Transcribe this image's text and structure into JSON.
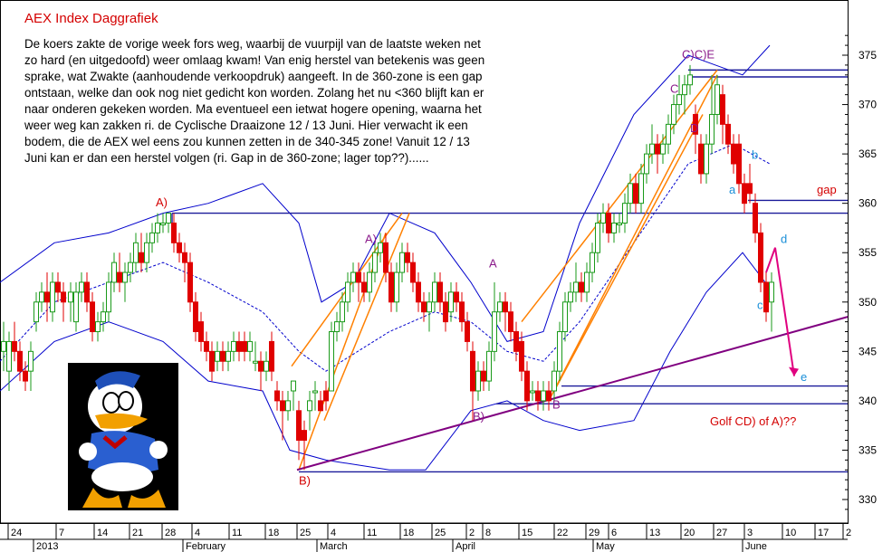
{
  "chart_data": {
    "type": "candlestick",
    "title": "AEX Index Daggrafiek",
    "commentary": [
      "De koers zakte de vorige week fors weg, waarbij de vuurpijl van de laatste weken net",
      "zo hard (en uitgedoofd) weer omlaag kwam! Van enig herstel van betekenis was geen",
      "sprake, wat Zwakte (aanhoudende verkoopdruk) aangeeft. In de 360-zone is een gap",
      "ontstaan, welke dan ook nog niet gedicht kon worden. Zolang het nu <360 blijft kan er",
      "naar onderen gekeken worden. Ma eventueel een ietwat hogere opening, waarna het",
      "weer weg kan zakken ri. de Cyclische Draaizone 12 / 13 Juni. Hier verwacht ik een",
      "bodem, die de AEX wel eens zou kunnen zetten in de 340-345 zone! Vanuit 12 / 13",
      "Juni kan er dan een herstel volgen (ri. Gap in de 360-zone; lager top??)......"
    ],
    "y_axis": {
      "range": [
        327,
        379
      ],
      "ticks": [
        330,
        335,
        340,
        345,
        350,
        355,
        360,
        365,
        370,
        375
      ]
    },
    "x_axis": {
      "tick_labels": [
        "24",
        "7",
        "14",
        "21",
        "28",
        "4",
        "11",
        "18",
        "25",
        "4",
        "11",
        "18",
        "25",
        "2",
        "8",
        "15",
        "22",
        "29",
        "6",
        "13",
        "20",
        "27",
        "3",
        "10",
        "17",
        "2"
      ],
      "month_labels": [
        "2013",
        "February",
        "March",
        "April",
        "May",
        "June"
      ]
    },
    "annotations": [
      "A)",
      "A)",
      "A",
      "B)",
      "B",
      "B)",
      "C)C)E",
      "C",
      "D",
      "a",
      "b",
      "c",
      "d",
      "e",
      "gap",
      "Golf CD) of A)??"
    ],
    "colors": {
      "up": "#1a9a1a",
      "down": "#e00000",
      "band": "#0000cc",
      "trend": "#ff8000",
      "support": "#800080",
      "forecast": "#e0007f"
    }
  }
}
